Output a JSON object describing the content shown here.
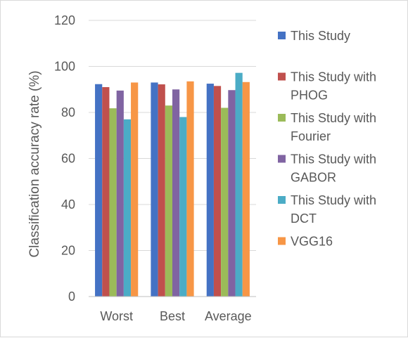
{
  "chart_data": {
    "type": "bar",
    "title": "",
    "xlabel": "",
    "ylabel": "Classification accuracy rate (%)",
    "ylim": [
      0,
      120
    ],
    "yticks": [
      0,
      20,
      40,
      60,
      80,
      100,
      120
    ],
    "grid": true,
    "legend_position": "right",
    "categories": [
      "Worst",
      "Best",
      "Average"
    ],
    "series": [
      {
        "name": "This Study",
        "legend_lines": [
          "This Study"
        ],
        "color": "#4472C4",
        "values": [
          92.3,
          93.0,
          92.5
        ]
      },
      {
        "name": "This Study with PHOG",
        "legend_lines": [
          "This Study with",
          "PHOG"
        ],
        "color": "#C0504D",
        "values": [
          91.0,
          92.2,
          91.5
        ]
      },
      {
        "name": "This Study with Fourier",
        "legend_lines": [
          "This Study with",
          "Fourier"
        ],
        "color": "#9BBB59",
        "values": [
          81.8,
          83.0,
          82.0
        ]
      },
      {
        "name": "This Study with GABOR",
        "legend_lines": [
          "This Study with",
          "GABOR"
        ],
        "color": "#8064A2",
        "values": [
          89.5,
          90.0,
          89.7
        ]
      },
      {
        "name": "This Study with DCT",
        "legend_lines": [
          "This Study with",
          "DCT"
        ],
        "color": "#4BACC6",
        "values": [
          77.0,
          78.0,
          97.2
        ]
      },
      {
        "name": "VGG16",
        "legend_lines": [
          "VGG16"
        ],
        "color": "#F79646",
        "values": [
          93.0,
          93.5,
          93.2
        ]
      }
    ]
  }
}
